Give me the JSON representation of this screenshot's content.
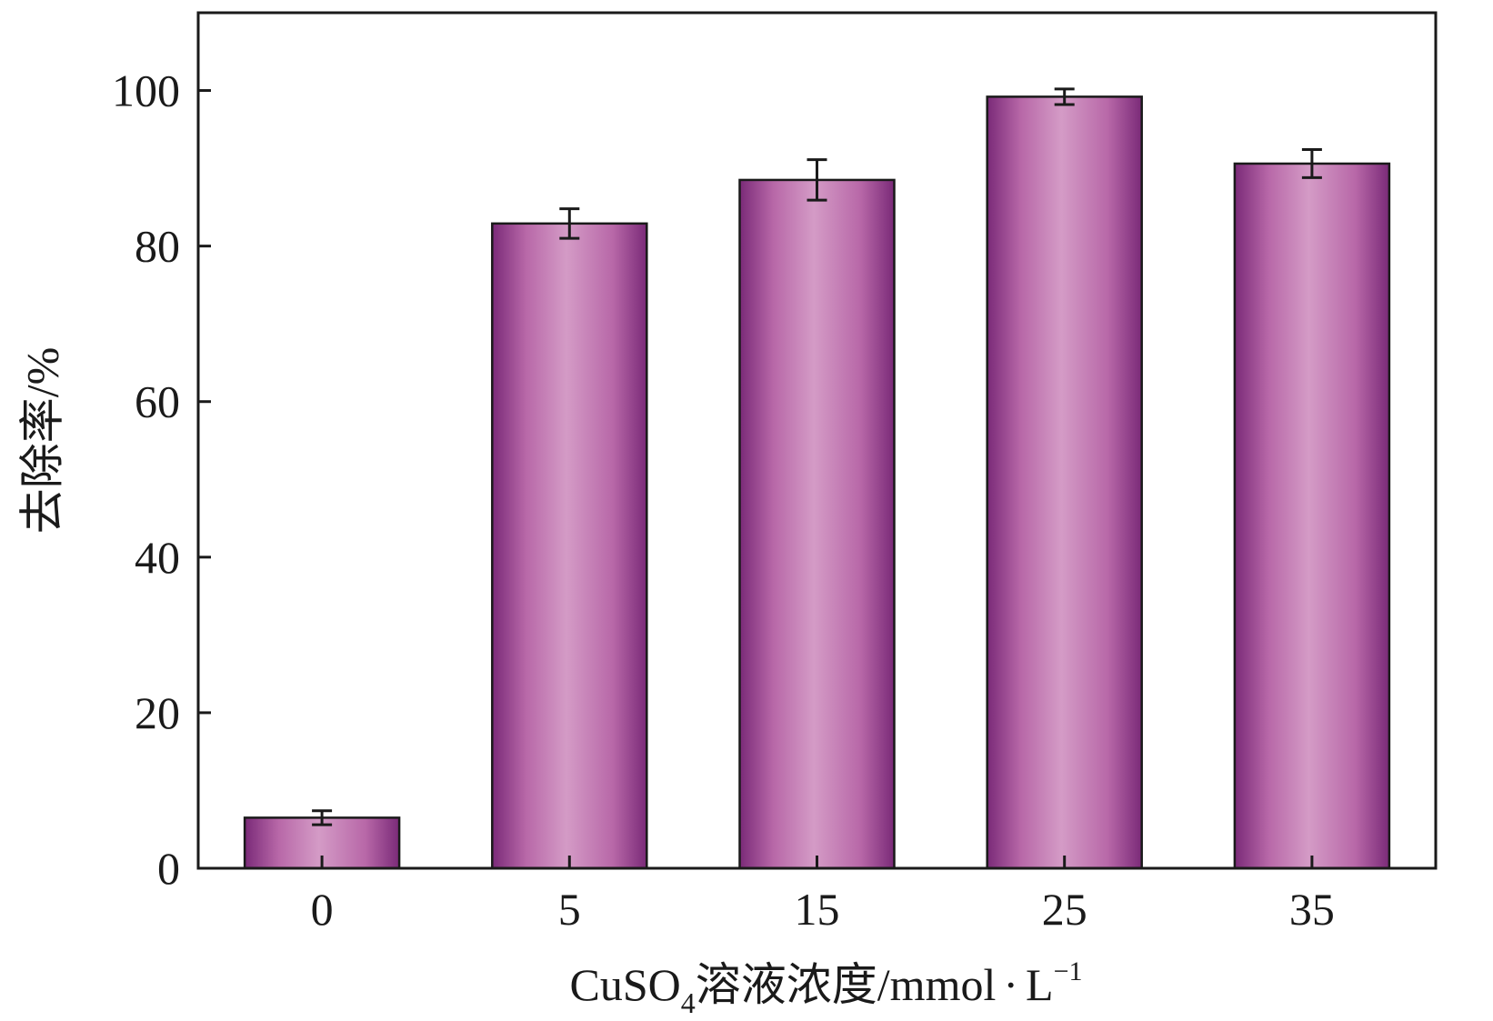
{
  "chart_data": {
    "type": "bar",
    "categories": [
      "0",
      "5",
      "15",
      "25",
      "35"
    ],
    "values": [
      6.5,
      82.9,
      88.5,
      99.2,
      90.6
    ],
    "errors": [
      0.9,
      1.9,
      2.6,
      1.0,
      1.8
    ],
    "xlabel": {
      "prefix": "CuSO",
      "subscript": "4",
      "middle": "溶液浓度/mmol",
      "dot": "·",
      "unit": "L",
      "superscript": "−1"
    },
    "ylabel": "去除率/%",
    "ylim": [
      0,
      110
    ],
    "yticks": [
      0,
      20,
      40,
      60,
      80,
      100
    ],
    "grid": false,
    "colors": {
      "bar_edge": "#7a2a78",
      "bar_center": "#d49bc6",
      "bar_mid": "#b868a8",
      "outline": "#1a1a1a",
      "axis": "#1a1a1a"
    }
  }
}
